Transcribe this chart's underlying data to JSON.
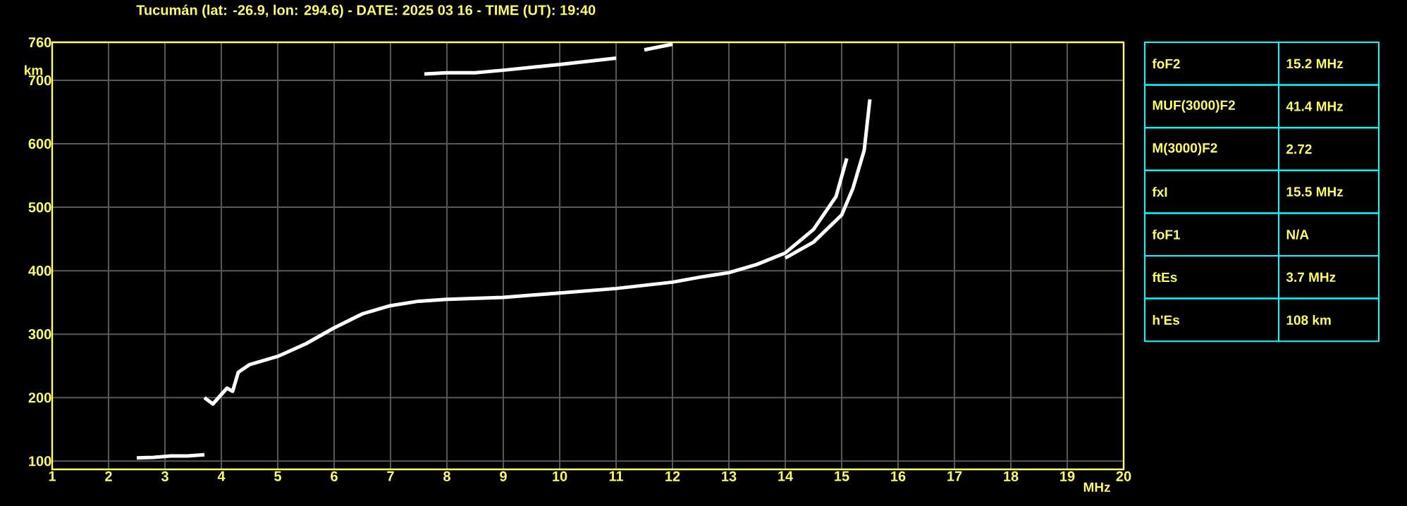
{
  "chart_data": {
    "type": "line",
    "title": "Tucumán (lat: -26.9, lon: 294.6) - DATE: 2025 03 16 - TIME (UT): 19:40",
    "xlabel": "MHz",
    "ylabel": "km",
    "xlim": [
      1,
      20
    ],
    "ylim": [
      87,
      760
    ],
    "xticks": [
      1,
      2,
      3,
      4,
      5,
      6,
      7,
      8,
      9,
      10,
      11,
      12,
      13,
      14,
      15,
      16,
      17,
      18,
      19,
      20
    ],
    "yticks": [
      100,
      200,
      300,
      400,
      500,
      600,
      700,
      760
    ],
    "grid": true,
    "marker": "none",
    "series": [
      {
        "color": "#ffffff",
        "x": [
          2.5,
          2.8,
          3.1,
          3.4,
          3.7
        ],
        "values": [
          105,
          106,
          108,
          108,
          110
        ]
      },
      {
        "color": "#ffffff",
        "x": [
          3.7,
          3.85,
          4.0,
          4.1,
          4.2,
          4.3,
          4.5,
          5.0,
          5.5,
          6.0,
          6.5,
          7.0,
          7.5,
          8.0,
          9.0,
          10.0,
          11.0,
          12.0,
          12.5,
          13.0,
          13.5,
          14.0,
          14.5,
          14.9,
          15.09
        ],
        "values": [
          200,
          190,
          205,
          215,
          210,
          240,
          252,
          265,
          285,
          310,
          332,
          345,
          352,
          355,
          358,
          365,
          372,
          382,
          390,
          397,
          410,
          428,
          465,
          517,
          577
        ]
      },
      {
        "color": "#ffffff",
        "x": [
          14.0,
          14.5,
          15.0,
          15.2,
          15.4,
          15.5
        ],
        "values": [
          420,
          445,
          488,
          530,
          590,
          670
        ]
      },
      {
        "color": "#ffffff",
        "x": [
          7.6,
          8.0,
          8.5,
          9.0,
          10.0,
          11.0
        ],
        "values": [
          710,
          712,
          712,
          716,
          725,
          735
        ]
      },
      {
        "color": "#ffffff",
        "x": [
          11.5,
          12.0
        ],
        "values": [
          748,
          757
        ]
      }
    ],
    "annotations": [
      "foF2",
      "15.2 MHz",
      "MUF(3000)F2",
      "41.4 MHz",
      "M(3000)F2",
      "2.72",
      "fxI",
      "15.5 MHz",
      "foF1",
      "N/A",
      "ftEs",
      "3.7 MHz",
      "h'Es",
      "108 km"
    ]
  }
}
